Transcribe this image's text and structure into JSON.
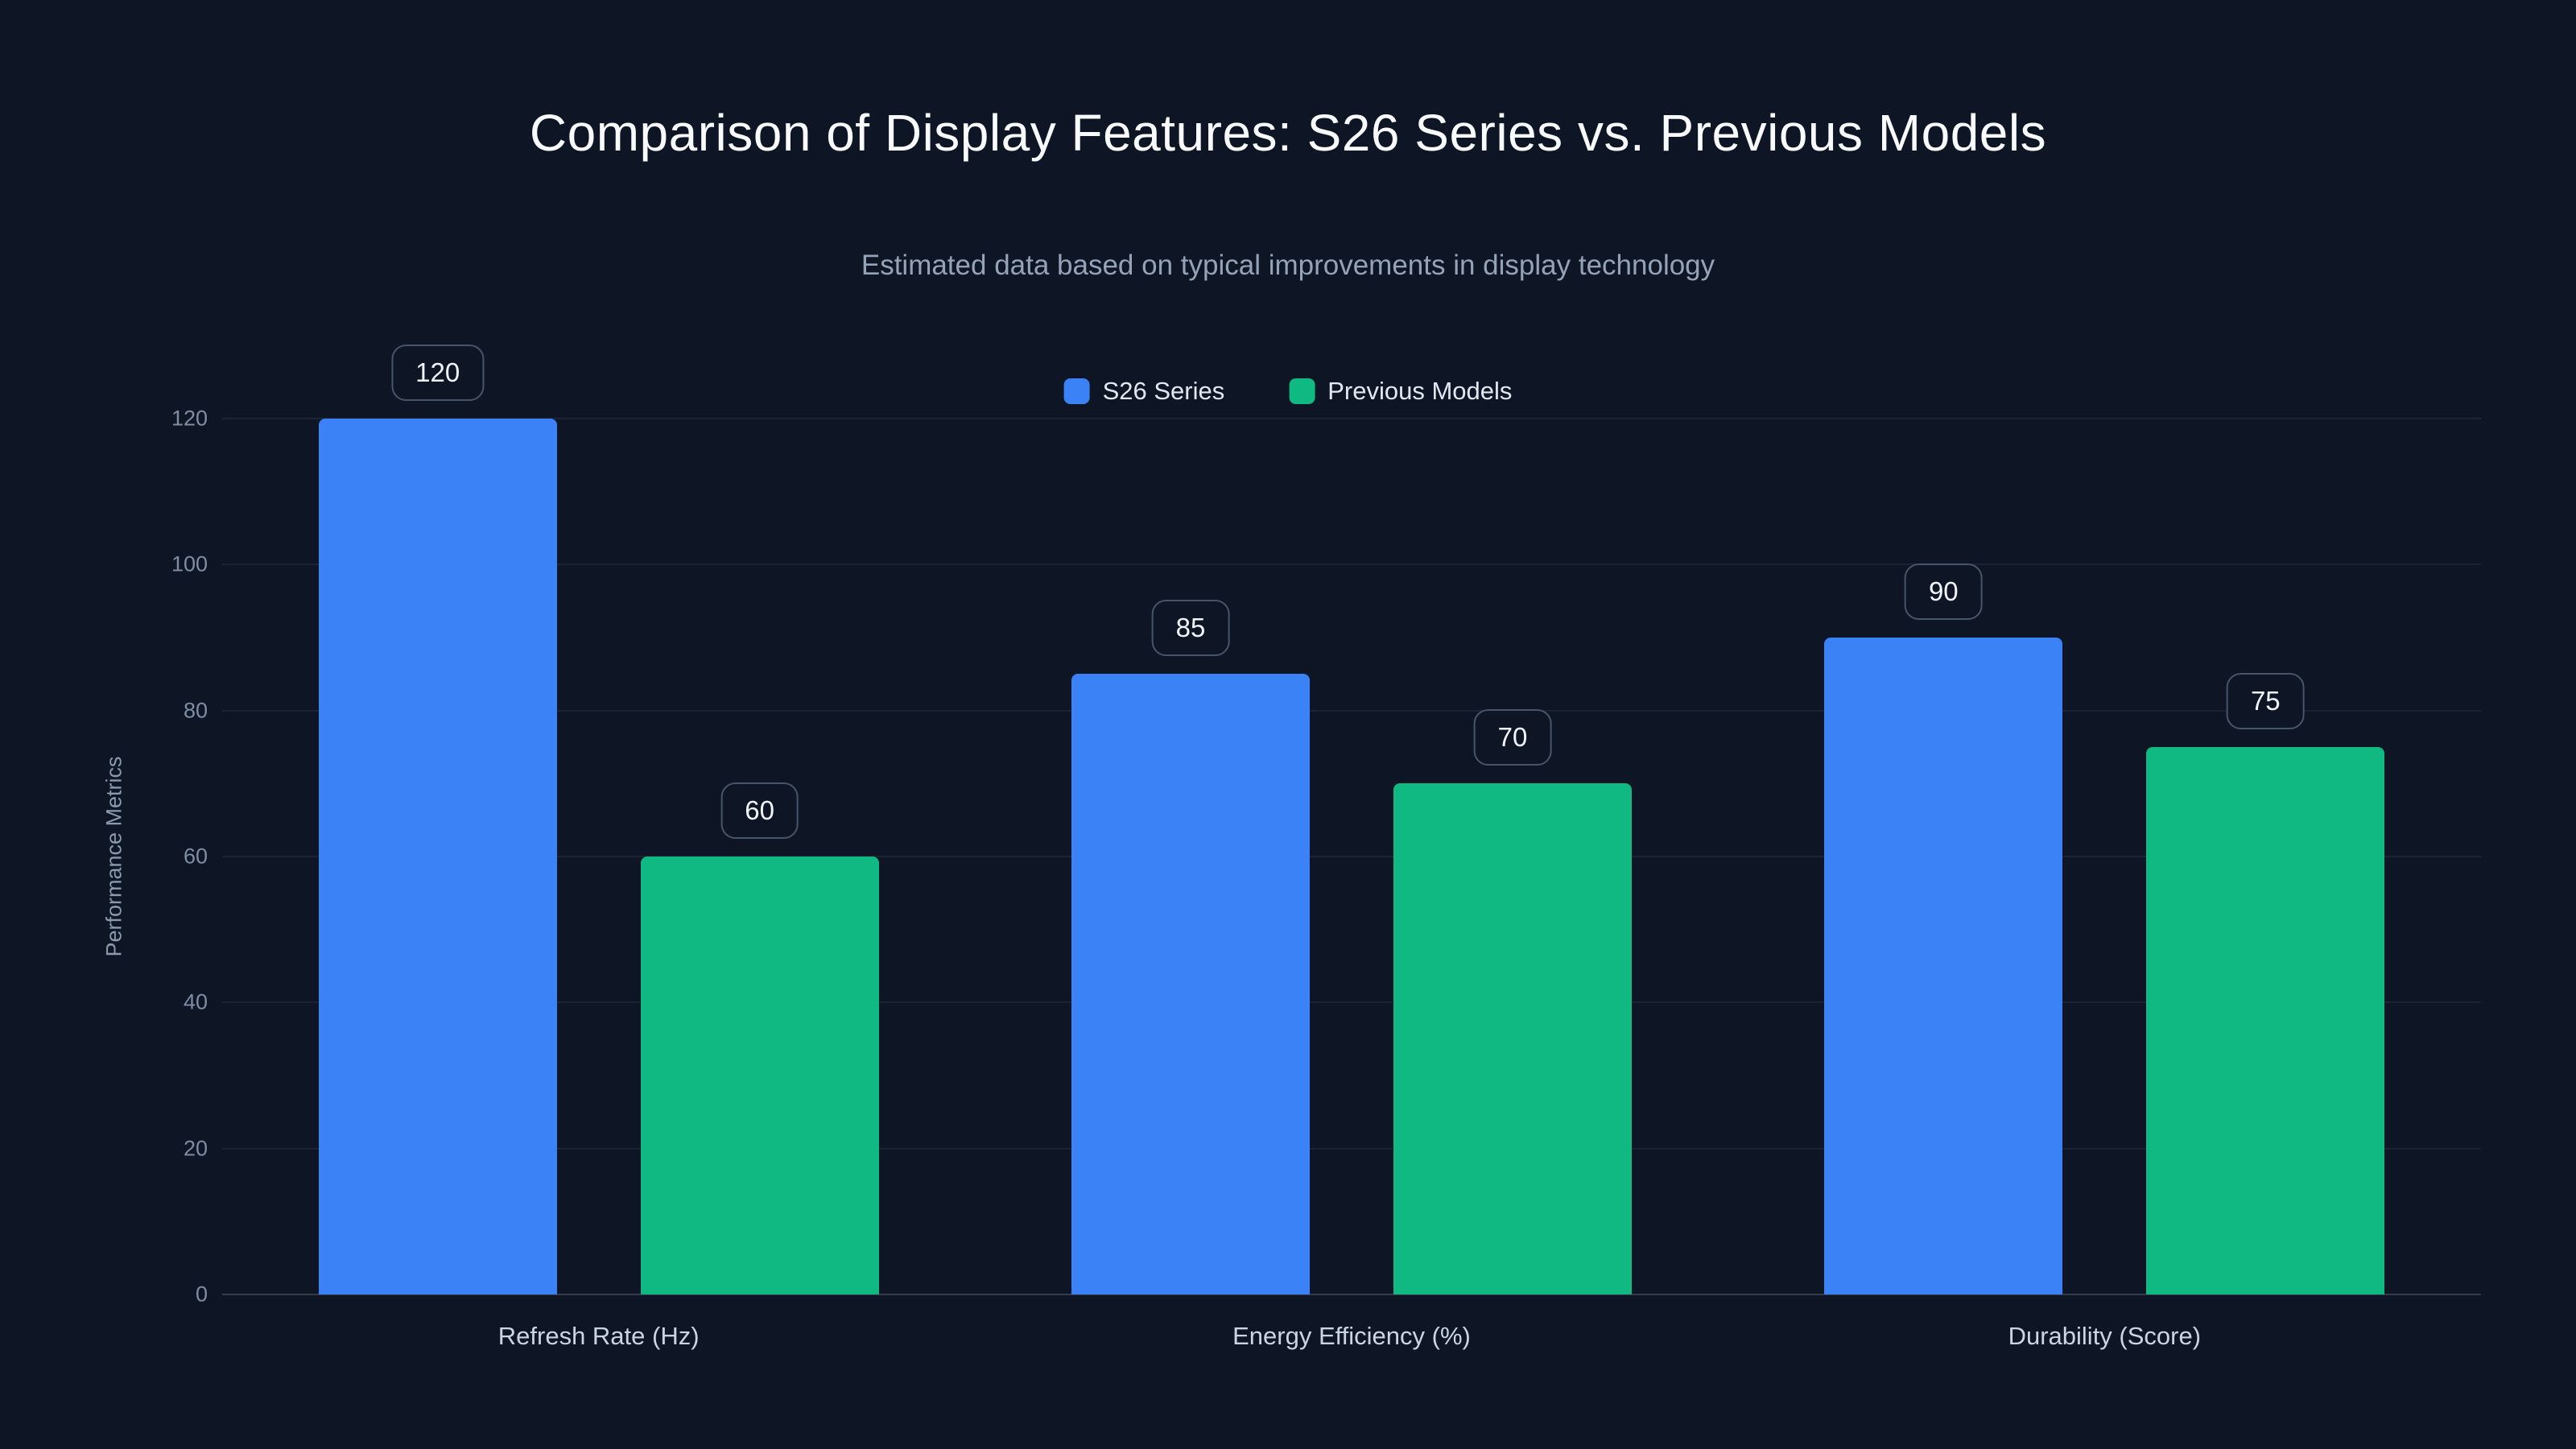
{
  "colors": {
    "background": "#0e1626",
    "title_text": "#f8fafc",
    "subtitle_text": "#94a3b8",
    "axis_text": "#7f8da3",
    "category_text": "#cbd5e1",
    "value_label_border": "#475569",
    "series_blue": "#3b82f6",
    "series_green": "#10b981"
  },
  "chart_data": {
    "type": "bar",
    "title": "Comparison of Display Features: S26 Series vs. Previous Models",
    "subtitle": "Estimated data based on typical improvements in display technology",
    "xlabel": "",
    "ylabel": "Performance Metrics",
    "categories": [
      "Refresh Rate (Hz)",
      "Energy Efficiency (%)",
      "Durability (Score)"
    ],
    "series": [
      {
        "name": "S26 Series",
        "color": "#3b82f6",
        "values": [
          120,
          85,
          90
        ]
      },
      {
        "name": "Previous Models",
        "color": "#10b981",
        "values": [
          60,
          70,
          75
        ]
      }
    ],
    "ylim": [
      0,
      120
    ],
    "yticks": [
      0,
      20,
      40,
      60,
      80,
      100,
      120
    ],
    "grid": true,
    "legend_position": "top",
    "data_labels": true
  }
}
